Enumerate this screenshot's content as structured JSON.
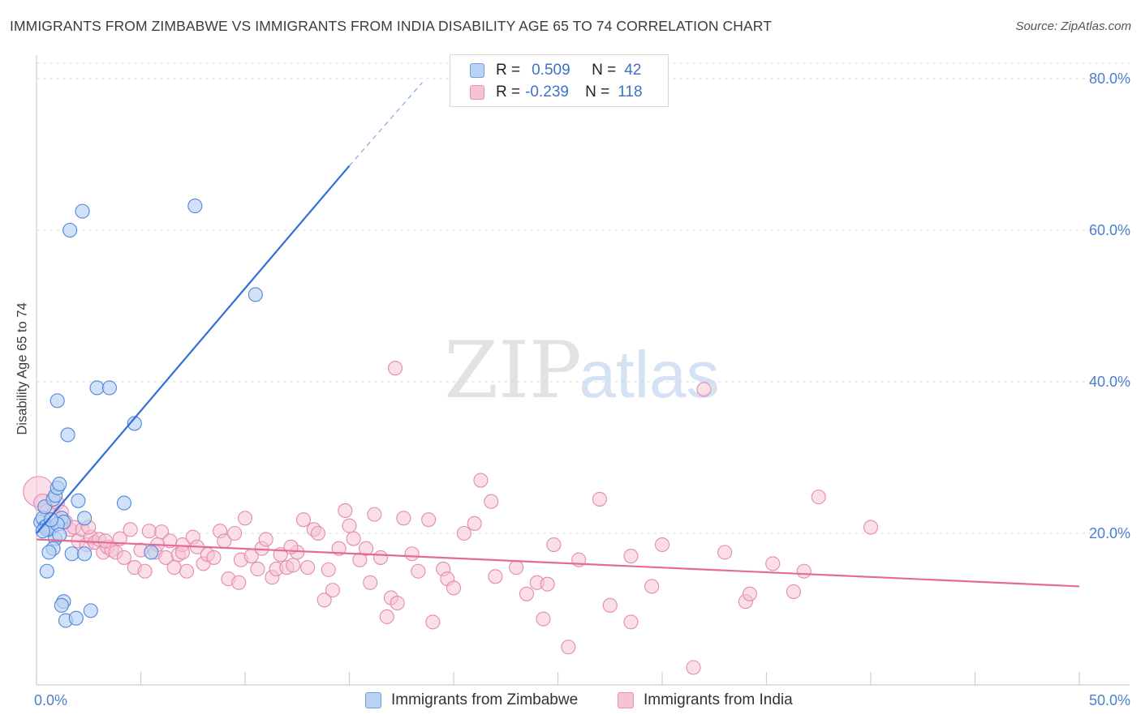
{
  "title": "IMMIGRANTS FROM ZIMBABWE VS IMMIGRANTS FROM INDIA DISABILITY AGE 65 TO 74 CORRELATION CHART",
  "source": "Source: ZipAtlas.com",
  "watermark": {
    "zip": "ZIP",
    "atlas": "atlas"
  },
  "legend": {
    "r_label": "R =",
    "n_label": "N =",
    "items": [
      {
        "name": "Immigrants from Zimbabwe",
        "r": "0.509",
        "n": "42",
        "fill": "#b9d1f3",
        "stroke": "#6f9fe0"
      },
      {
        "name": "Immigrants from India",
        "r": "-0.239",
        "n": "118",
        "fill": "#f6c3d5",
        "stroke": "#e890b0"
      }
    ]
  },
  "colors": {
    "zimbabwe_fill": "#b9d1f3",
    "zimbabwe_stroke": "#4f86db",
    "zimbabwe_line": "#2f6fd6",
    "india_fill": "#f6c3d5",
    "india_stroke": "#e38bad",
    "india_line": "#e46a97",
    "axis_text": "#4a7fd1",
    "grid": "#dddddd"
  },
  "chart_data": {
    "type": "scatter",
    "title": "IMMIGRANTS FROM ZIMBABWE VS IMMIGRANTS FROM INDIA DISABILITY AGE 65 TO 74 CORRELATION CHART",
    "xlabel": "",
    "ylabel": "Disability Age 65 to 74",
    "xlim": [
      0,
      50
    ],
    "ylim": [
      0,
      82
    ],
    "x_tick_labels": {
      "min": "0.0%",
      "max": "50.0%"
    },
    "y_ticks": [
      {
        "value": 20,
        "label": "20.0%"
      },
      {
        "value": 40,
        "label": "40.0%"
      },
      {
        "value": 60,
        "label": "60.0%"
      },
      {
        "value": 80,
        "label": "80.0%"
      }
    ],
    "grid": true,
    "series": [
      {
        "name": "Immigrants from Zimbabwe",
        "r": 0.509,
        "n": 42,
        "trend": {
          "x0": 0,
          "y0": 20.0,
          "x1": 15.0,
          "y1": 68.5,
          "dash_to_x": 18.5,
          "dash_to_y": 79.5
        },
        "points": [
          [
            0.2,
            21.5,
            1
          ],
          [
            0.3,
            22.0,
            1
          ],
          [
            0.4,
            20.8,
            1
          ],
          [
            0.5,
            21.0,
            1
          ],
          [
            0.4,
            23.5,
            1
          ],
          [
            0.6,
            20.5,
            1
          ],
          [
            0.7,
            20.7,
            1
          ],
          [
            0.8,
            24.5,
            1
          ],
          [
            0.9,
            25.0,
            1
          ],
          [
            1.0,
            26.0,
            1
          ],
          [
            1.1,
            26.5,
            1
          ],
          [
            1.2,
            22.0,
            1
          ],
          [
            1.3,
            21.5,
            1
          ],
          [
            0.9,
            19.3,
            1
          ],
          [
            0.8,
            18.0,
            1
          ],
          [
            0.6,
            17.5,
            1
          ],
          [
            0.5,
            15.0,
            1
          ],
          [
            1.3,
            11.0,
            1
          ],
          [
            1.2,
            10.5,
            1
          ],
          [
            1.4,
            8.5,
            1
          ],
          [
            1.9,
            8.8,
            1
          ],
          [
            2.6,
            9.8,
            1
          ],
          [
            1.7,
            17.3,
            1
          ],
          [
            2.3,
            17.3,
            1
          ],
          [
            2.0,
            24.3,
            1
          ],
          [
            2.3,
            22.0,
            1
          ],
          [
            1.0,
            37.5,
            1
          ],
          [
            1.5,
            33.0,
            1
          ],
          [
            2.9,
            39.2,
            1
          ],
          [
            3.5,
            39.2,
            1
          ],
          [
            4.7,
            34.5,
            1
          ],
          [
            4.2,
            24.0,
            1
          ],
          [
            1.6,
            60.0,
            1
          ],
          [
            2.2,
            62.5,
            1
          ],
          [
            7.6,
            63.2,
            1
          ],
          [
            10.5,
            51.5,
            1
          ],
          [
            5.5,
            17.5,
            1
          ],
          [
            0.5,
            20.5,
            1
          ],
          [
            1.0,
            21.2,
            1
          ],
          [
            0.3,
            20.3,
            1
          ],
          [
            1.1,
            19.8,
            1
          ],
          [
            0.7,
            21.8,
            1
          ]
        ]
      },
      {
        "name": "Immigrants from India",
        "r": -0.239,
        "n": 118,
        "trend": {
          "x0": 0,
          "y0": 19.2,
          "x1": 50,
          "y1": 13.0
        },
        "points": [
          [
            0.1,
            25.5,
            2.2
          ],
          [
            0.3,
            24.0,
            1.3
          ],
          [
            0.5,
            23.0,
            1
          ],
          [
            0.8,
            22.5,
            1
          ],
          [
            1.0,
            24.0,
            1
          ],
          [
            1.2,
            22.8,
            1
          ],
          [
            1.4,
            21.5,
            1
          ],
          [
            1.6,
            20.5,
            1
          ],
          [
            1.8,
            20.8,
            1
          ],
          [
            2.0,
            19.0,
            1
          ],
          [
            2.2,
            20.5,
            1
          ],
          [
            2.4,
            18.5,
            1
          ],
          [
            2.6,
            19.5,
            1
          ],
          [
            2.8,
            18.8,
            1
          ],
          [
            3.0,
            19.2,
            1
          ],
          [
            3.2,
            17.5,
            1
          ],
          [
            3.4,
            18.2,
            1
          ],
          [
            3.6,
            17.8,
            1
          ],
          [
            3.8,
            17.5,
            1
          ],
          [
            4.0,
            19.3,
            1
          ],
          [
            4.2,
            16.8,
            1
          ],
          [
            4.5,
            20.5,
            1
          ],
          [
            4.7,
            15.5,
            1
          ],
          [
            5.0,
            17.8,
            1
          ],
          [
            5.2,
            15.0,
            1
          ],
          [
            5.4,
            20.3,
            1
          ],
          [
            5.7,
            17.5,
            1
          ],
          [
            6.0,
            20.2,
            1
          ],
          [
            6.2,
            16.8,
            1
          ],
          [
            6.4,
            19.0,
            1
          ],
          [
            6.6,
            15.5,
            1
          ],
          [
            6.8,
            17.2,
            1
          ],
          [
            7.0,
            18.5,
            1
          ],
          [
            7.2,
            15.0,
            1
          ],
          [
            7.5,
            19.5,
            1
          ],
          [
            7.7,
            18.2,
            1
          ],
          [
            8.0,
            16.0,
            1
          ],
          [
            8.2,
            17.2,
            1
          ],
          [
            8.5,
            16.8,
            1
          ],
          [
            8.8,
            20.3,
            1
          ],
          [
            9.0,
            19.0,
            1
          ],
          [
            9.2,
            14.0,
            1
          ],
          [
            9.5,
            20.0,
            1
          ],
          [
            9.8,
            16.5,
            1
          ],
          [
            10.0,
            22.0,
            1
          ],
          [
            10.3,
            17.0,
            1
          ],
          [
            10.6,
            15.3,
            1
          ],
          [
            10.8,
            18.0,
            1
          ],
          [
            11.0,
            19.2,
            1
          ],
          [
            11.3,
            14.2,
            1
          ],
          [
            11.5,
            15.3,
            1
          ],
          [
            11.7,
            17.2,
            1
          ],
          [
            12.0,
            15.5,
            1
          ],
          [
            12.3,
            15.8,
            1
          ],
          [
            12.5,
            17.5,
            1
          ],
          [
            12.8,
            21.8,
            1
          ],
          [
            13.0,
            15.5,
            1
          ],
          [
            13.3,
            20.5,
            1
          ],
          [
            13.5,
            20.0,
            1
          ],
          [
            13.8,
            11.2,
            1
          ],
          [
            14.0,
            15.2,
            1
          ],
          [
            14.2,
            12.5,
            1
          ],
          [
            14.5,
            18.0,
            1
          ],
          [
            14.8,
            23.0,
            1
          ],
          [
            15.2,
            19.3,
            1
          ],
          [
            15.5,
            16.5,
            1
          ],
          [
            15.8,
            18.0,
            1
          ],
          [
            16.0,
            13.5,
            1
          ],
          [
            16.2,
            22.5,
            1
          ],
          [
            16.5,
            16.8,
            1
          ],
          [
            16.8,
            9.0,
            1
          ],
          [
            17.0,
            11.5,
            1
          ],
          [
            17.3,
            10.8,
            1
          ],
          [
            17.6,
            22.0,
            1
          ],
          [
            18.0,
            17.3,
            1
          ],
          [
            18.3,
            15.0,
            1
          ],
          [
            18.8,
            21.8,
            1
          ],
          [
            19.0,
            8.3,
            1
          ],
          [
            19.5,
            15.3,
            1
          ],
          [
            19.7,
            14.0,
            1
          ],
          [
            20.0,
            12.8,
            1
          ],
          [
            21.0,
            21.3,
            1
          ],
          [
            21.3,
            27.0,
            1
          ],
          [
            21.8,
            24.2,
            1
          ],
          [
            22.0,
            14.3,
            1
          ],
          [
            23.0,
            15.5,
            1
          ],
          [
            23.5,
            12.0,
            1
          ],
          [
            24.0,
            13.5,
            1
          ],
          [
            24.3,
            8.7,
            1
          ],
          [
            24.5,
            13.3,
            1
          ],
          [
            24.8,
            18.5,
            1
          ],
          [
            25.5,
            5.0,
            1
          ],
          [
            27.0,
            24.5,
            1
          ],
          [
            27.5,
            10.5,
            1
          ],
          [
            28.5,
            8.3,
            1
          ],
          [
            28.5,
            17.0,
            1
          ],
          [
            29.5,
            13.0,
            1
          ],
          [
            30.0,
            18.5,
            1
          ],
          [
            31.5,
            2.3,
            1
          ],
          [
            32.0,
            39.0,
            1
          ],
          [
            33.0,
            17.5,
            1
          ],
          [
            34.0,
            11.0,
            1
          ],
          [
            34.2,
            12.0,
            1
          ],
          [
            35.3,
            16.0,
            1
          ],
          [
            36.3,
            12.3,
            1
          ],
          [
            36.8,
            15.0,
            1
          ],
          [
            37.5,
            24.8,
            1
          ],
          [
            40.0,
            20.8,
            1
          ],
          [
            17.2,
            41.8,
            1
          ],
          [
            7.0,
            17.5,
            1
          ],
          [
            3.3,
            19.0,
            1
          ],
          [
            2.5,
            20.8,
            1
          ],
          [
            5.8,
            18.5,
            1
          ],
          [
            12.2,
            18.2,
            1
          ],
          [
            20.5,
            20.0,
            1
          ],
          [
            26.0,
            16.5,
            1
          ],
          [
            9.7,
            13.5,
            1
          ],
          [
            15.0,
            21.0,
            1
          ]
        ]
      }
    ]
  }
}
